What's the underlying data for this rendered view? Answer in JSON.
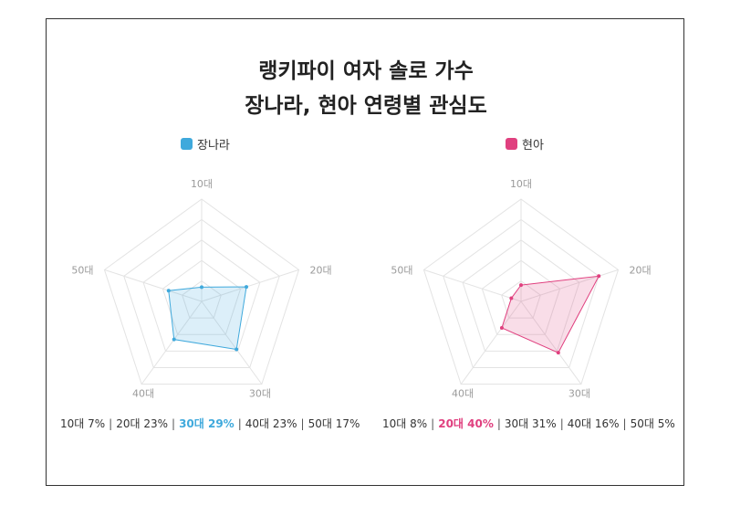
{
  "title": {
    "line1": "랭키파이 여자 솔로 가수",
    "line2": "장나라, 현아 연령별 관심도"
  },
  "chart_data": [
    {
      "type": "radar",
      "series": [
        {
          "name": "장나라",
          "values": [
            7,
            23,
            29,
            23,
            17
          ]
        }
      ],
      "categories": [
        "10대",
        "20대",
        "30대",
        "40대",
        "50대"
      ],
      "max": 50,
      "rings": 5,
      "color": "#3fa9dc",
      "highlight_index": 2,
      "stats": [
        "10대 7%",
        "20대 23%",
        "30대 29%",
        "40대 23%",
        "50대 17%"
      ]
    },
    {
      "type": "radar",
      "series": [
        {
          "name": "현아",
          "values": [
            8,
            40,
            31,
            16,
            5
          ]
        }
      ],
      "categories": [
        "10대",
        "20대",
        "30대",
        "40대",
        "50대"
      ],
      "max": 50,
      "rings": 5,
      "color": "#e0407f",
      "highlight_index": 1,
      "stats": [
        "10대 8%",
        "20대 40%",
        "30대 31%",
        "40대 16%",
        "50대 5%"
      ]
    }
  ]
}
